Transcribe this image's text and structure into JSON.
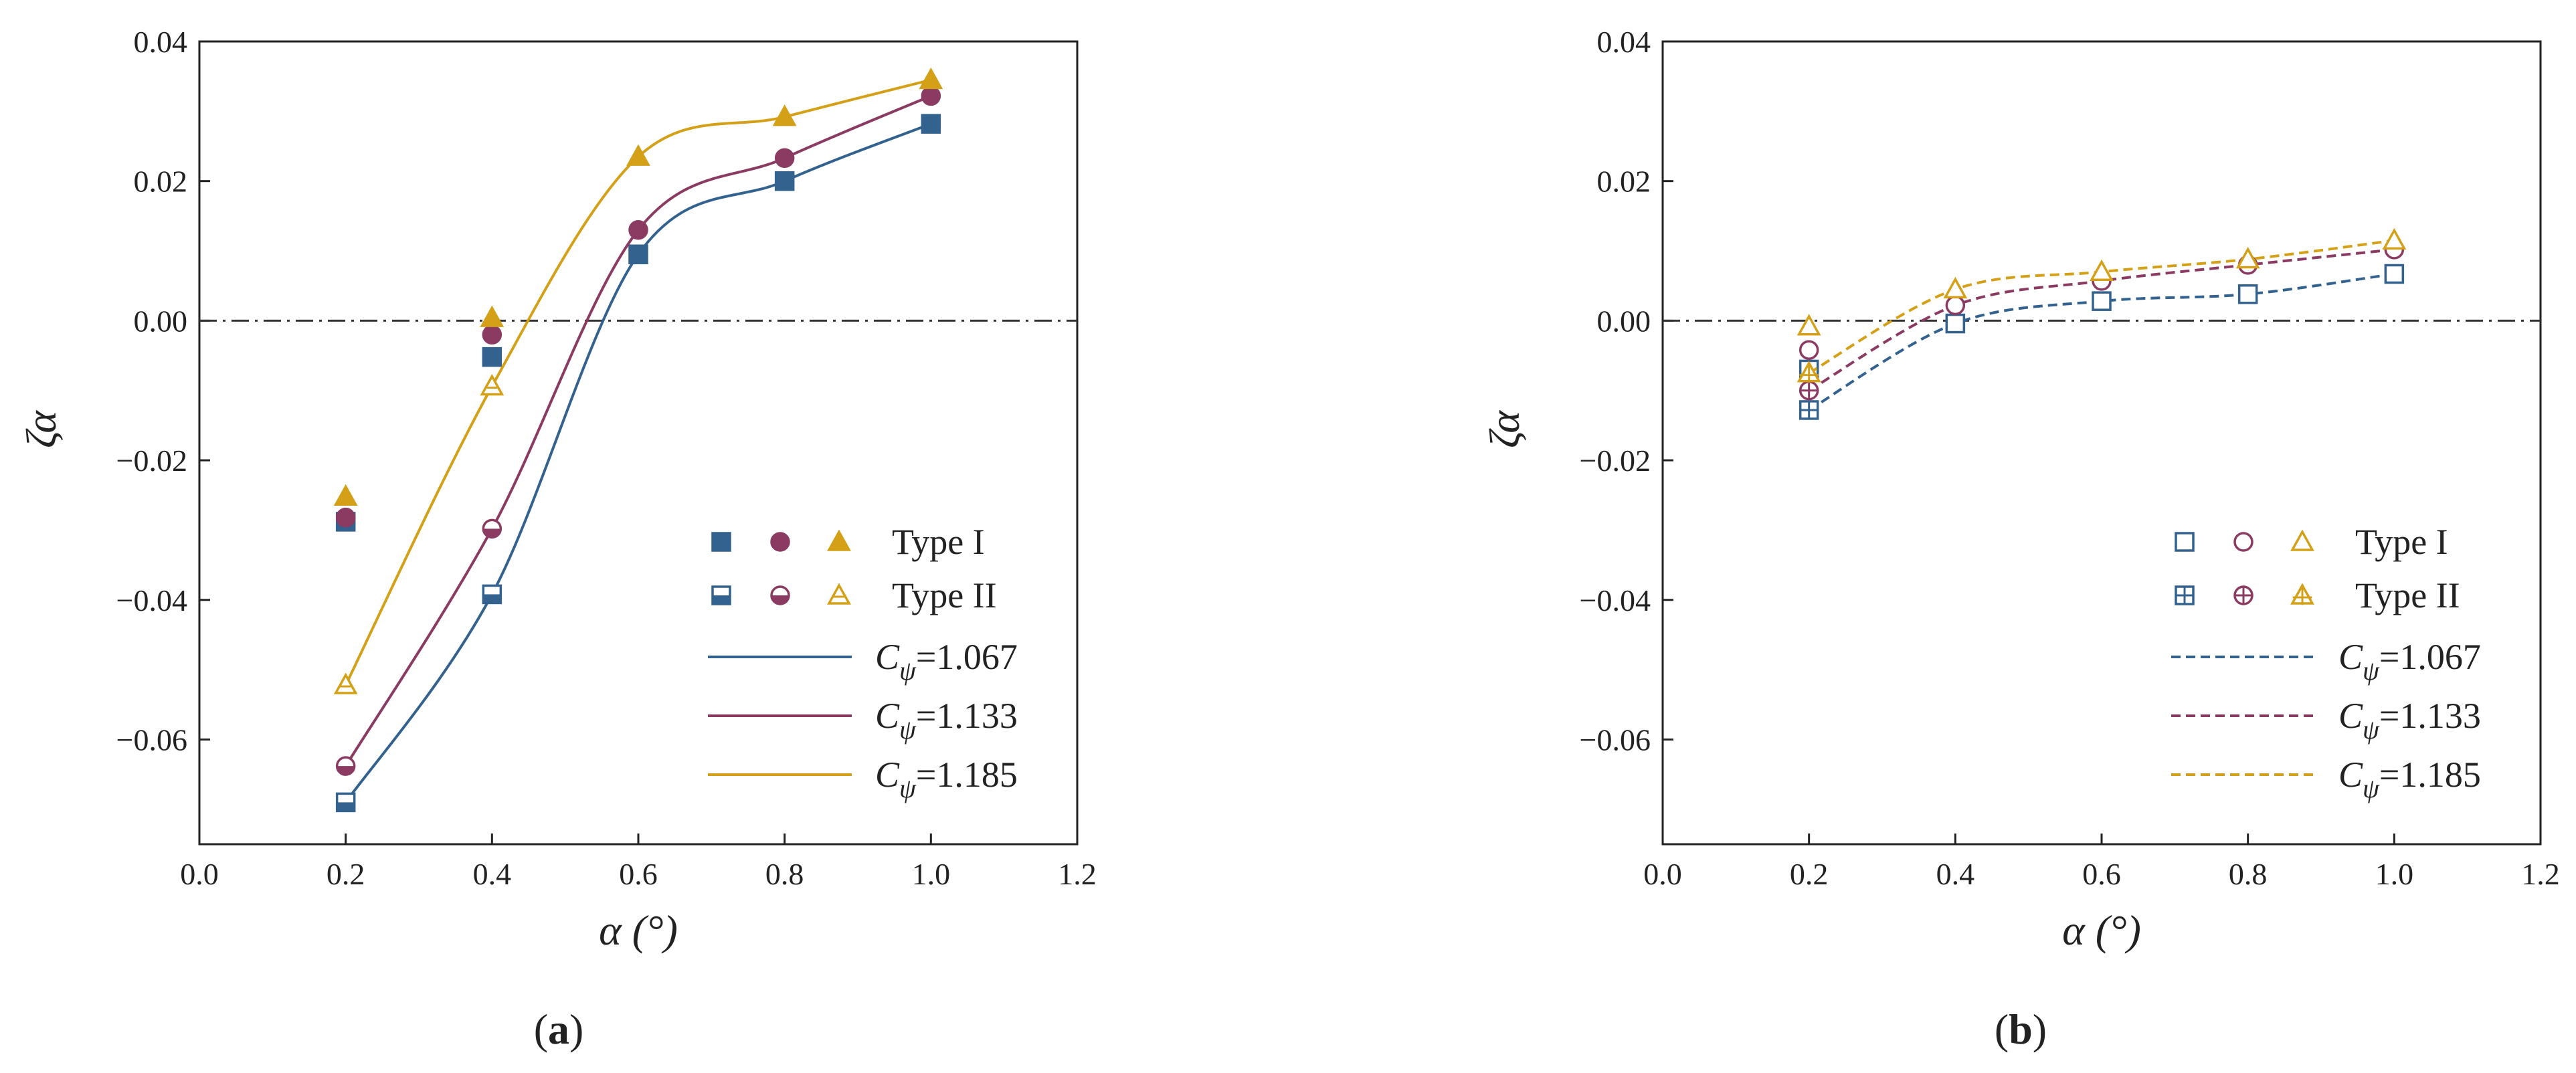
{
  "chart_data": [
    {
      "type": "scatter",
      "panel_label": "a",
      "xlabel": "α (°)",
      "ylabel": "ζα",
      "xlim": [
        0.0,
        1.2
      ],
      "ylim": [
        -0.075,
        0.04
      ],
      "x_ticks": [
        "0.0",
        "0.2",
        "0.4",
        "0.6",
        "0.8",
        "1.0",
        "1.2"
      ],
      "y_ticks": [
        "0.04",
        "0.02",
        "0.00",
        "−0.02",
        "−0.04",
        "−0.06"
      ],
      "zero_line": true,
      "legend": {
        "position": "bottom-right",
        "marker_labels": [
          "Type I",
          "Type II"
        ],
        "line_labels": [
          {
            "symbol": "C",
            "subscript": "ψ",
            "value": "=1.067"
          },
          {
            "symbol": "C",
            "subscript": "ψ",
            "value": "=1.133"
          },
          {
            "symbol": "C",
            "subscript": "ψ",
            "value": "=1.185"
          }
        ]
      },
      "series": [
        {
          "name": "C_ψ=1.067",
          "color": "#33628f",
          "type_I": [
            {
              "x": 0.2,
              "y": -0.0288
            },
            {
              "x": 0.4,
              "y": -0.0052
            },
            {
              "x": 0.6,
              "y": 0.0095
            },
            {
              "x": 0.8,
              "y": 0.02
            },
            {
              "x": 1.0,
              "y": 0.0282
            }
          ],
          "type_II": [
            {
              "x": 0.2,
              "y": -0.069
            },
            {
              "x": 0.4,
              "y": -0.0392
            }
          ],
          "curve": [
            {
              "x": 0.2,
              "y": -0.069
            },
            {
              "x": 0.4,
              "y": -0.0392
            },
            {
              "x": 0.6,
              "y": 0.0095
            },
            {
              "x": 0.8,
              "y": 0.02
            },
            {
              "x": 1.0,
              "y": 0.0282
            }
          ]
        },
        {
          "name": "C_ψ=1.133",
          "color": "#8b3a62",
          "type_I": [
            {
              "x": 0.2,
              "y": -0.0282
            },
            {
              "x": 0.4,
              "y": -0.002
            },
            {
              "x": 0.6,
              "y": 0.013
            },
            {
              "x": 0.8,
              "y": 0.0233
            },
            {
              "x": 1.0,
              "y": 0.0322
            }
          ],
          "type_II": [
            {
              "x": 0.2,
              "y": -0.0638
            },
            {
              "x": 0.4,
              "y": -0.0298
            }
          ],
          "curve": [
            {
              "x": 0.2,
              "y": -0.0638
            },
            {
              "x": 0.4,
              "y": -0.0298
            },
            {
              "x": 0.6,
              "y": 0.013
            },
            {
              "x": 0.8,
              "y": 0.0233
            },
            {
              "x": 1.0,
              "y": 0.0322
            }
          ]
        },
        {
          "name": "C_ψ=1.185",
          "color": "#d4a017",
          "type_I": [
            {
              "x": 0.2,
              "y": -0.0252
            },
            {
              "x": 0.4,
              "y": 0.0004
            },
            {
              "x": 0.6,
              "y": 0.0235
            },
            {
              "x": 0.8,
              "y": 0.0292
            },
            {
              "x": 1.0,
              "y": 0.0345
            }
          ],
          "type_II": [
            {
              "x": 0.2,
              "y": -0.0522
            },
            {
              "x": 0.4,
              "y": -0.0094
            }
          ],
          "curve": [
            {
              "x": 0.2,
              "y": -0.0522
            },
            {
              "x": 0.4,
              "y": -0.0094
            },
            {
              "x": 0.6,
              "y": 0.0235
            },
            {
              "x": 0.8,
              "y": 0.0292
            },
            {
              "x": 1.0,
              "y": 0.0345
            }
          ]
        }
      ]
    },
    {
      "type": "scatter",
      "panel_label": "b",
      "xlabel": "α (°)",
      "ylabel": "ζα",
      "xlim": [
        0.0,
        1.2
      ],
      "ylim": [
        -0.075,
        0.04
      ],
      "x_ticks": [
        "0.0",
        "0.2",
        "0.4",
        "0.6",
        "0.8",
        "1.0",
        "1.2"
      ],
      "y_ticks": [
        "0.04",
        "0.02",
        "0.00",
        "−0.02",
        "−0.04",
        "−0.06"
      ],
      "zero_line": true,
      "legend": {
        "position": "bottom-right",
        "marker_labels": [
          "Type I",
          "Type II"
        ],
        "line_labels": [
          {
            "symbol": "C",
            "subscript": "ψ",
            "value": "=1.067"
          },
          {
            "symbol": "C",
            "subscript": "ψ",
            "value": "=1.133"
          },
          {
            "symbol": "C",
            "subscript": "ψ",
            "value": "=1.185"
          }
        ]
      },
      "series": [
        {
          "name": "C_ψ=1.067",
          "color": "#33628f",
          "type_I": [
            {
              "x": 0.2,
              "y": -0.007
            },
            {
              "x": 0.4,
              "y": -0.0004
            },
            {
              "x": 0.6,
              "y": 0.0028
            },
            {
              "x": 0.8,
              "y": 0.0038
            },
            {
              "x": 1.0,
              "y": 0.0067
            }
          ],
          "type_II": [
            {
              "x": 0.2,
              "y": -0.0128
            }
          ],
          "curve": [
            {
              "x": 0.2,
              "y": -0.0128
            },
            {
              "x": 0.4,
              "y": -0.0004
            },
            {
              "x": 0.6,
              "y": 0.0028
            },
            {
              "x": 0.8,
              "y": 0.0038
            },
            {
              "x": 1.0,
              "y": 0.0067
            }
          ]
        },
        {
          "name": "C_ψ=1.133",
          "color": "#8b3a62",
          "type_I": [
            {
              "x": 0.2,
              "y": -0.0042
            },
            {
              "x": 0.4,
              "y": 0.0022
            },
            {
              "x": 0.6,
              "y": 0.0057
            },
            {
              "x": 0.8,
              "y": 0.008
            },
            {
              "x": 1.0,
              "y": 0.0102
            }
          ],
          "type_II": [
            {
              "x": 0.2,
              "y": -0.01
            }
          ],
          "curve": [
            {
              "x": 0.2,
              "y": -0.01
            },
            {
              "x": 0.4,
              "y": 0.0022
            },
            {
              "x": 0.6,
              "y": 0.0057
            },
            {
              "x": 0.8,
              "y": 0.008
            },
            {
              "x": 1.0,
              "y": 0.0102
            }
          ]
        },
        {
          "name": "C_ψ=1.185",
          "color": "#d4a017",
          "type_I": [
            {
              "x": 0.2,
              "y": -0.0008
            },
            {
              "x": 0.4,
              "y": 0.0045
            },
            {
              "x": 0.6,
              "y": 0.007
            },
            {
              "x": 0.8,
              "y": 0.0088
            },
            {
              "x": 1.0,
              "y": 0.0115
            }
          ],
          "type_II": [
            {
              "x": 0.2,
              "y": -0.0075
            }
          ],
          "curve": [
            {
              "x": 0.2,
              "y": -0.0075
            },
            {
              "x": 0.4,
              "y": 0.0045
            },
            {
              "x": 0.6,
              "y": 0.007
            },
            {
              "x": 0.8,
              "y": 0.0088
            },
            {
              "x": 1.0,
              "y": 0.0115
            }
          ]
        }
      ]
    }
  ]
}
